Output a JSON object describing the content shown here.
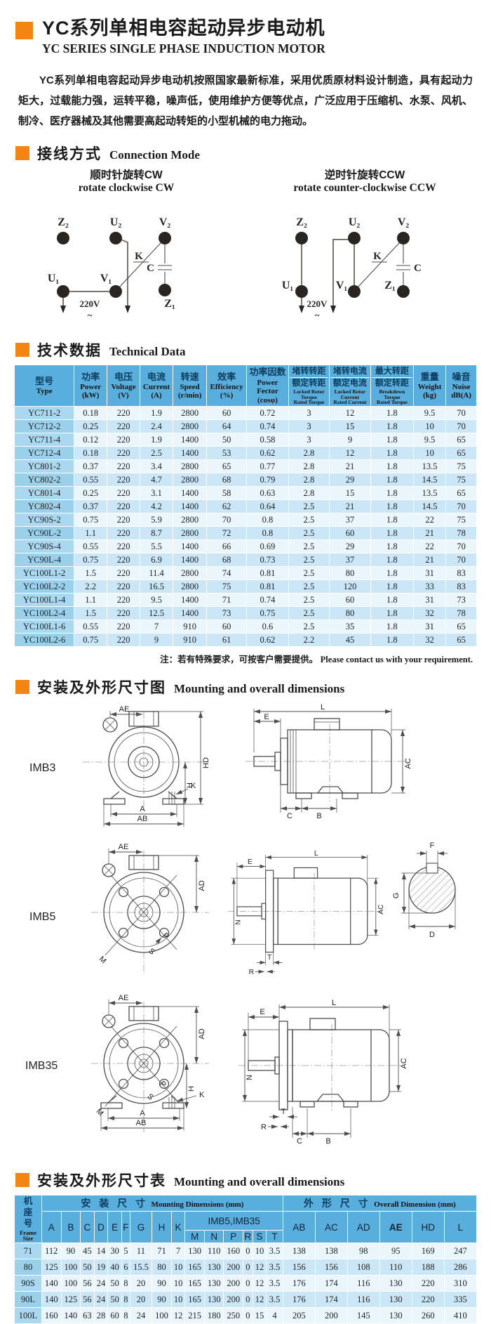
{
  "dims": {
    "A": "A",
    "AB": "AB",
    "AC": "AC",
    "AD": "AD",
    "AE": "AE",
    "B": "B",
    "C": "C",
    "D": "D",
    "E": "E",
    "F": "F",
    "G": "G",
    "H": "H",
    "HD": "HD",
    "K": "K",
    "L": "L",
    "M": "M",
    "N": "N",
    "P": "P",
    "R": "R",
    "S": "S",
    "T": "T"
  },
  "header": {
    "title_cn": "YC系列单相电容起动异步电动机",
    "title_en": "YC SERIES SINGLE PHASE INDUCTION MOTOR"
  },
  "intro": {
    "text": "YC系列单相电容起动异步电动机按照国家最新标准，采用优质原材料设计制造，具有起动力矩大，过载能力强，运转平稳，噪声低，使用维护方便等优点，广泛应用于压缩机、水泵、风机、制冷、医疗器械及其他需要高起动转矩的小型机械的电力拖动。"
  },
  "connection": {
    "heading_cn": "接线方式",
    "heading_en": "Connection Mode",
    "cw": {
      "title_cn": "顺时针旋转CW",
      "title_en": "rotate clockwise CW"
    },
    "ccw": {
      "title_cn": "逆时针旋转CCW",
      "title_en": "rotate counter-clockwise CCW"
    },
    "terminals": {
      "z2": "Z₂",
      "u2": "U₂",
      "v2": "V₂",
      "u1": "U₁",
      "v1": "V₁",
      "z1": "Z₁"
    },
    "labels": {
      "k": "K",
      "c": "C",
      "v": "220V",
      "tilde": "~"
    }
  },
  "technical": {
    "heading_cn": "技术数据",
    "heading_en": "Technical Data",
    "columns": [
      {
        "cn": "型号",
        "en": "Type",
        "unit": ""
      },
      {
        "cn": "功率",
        "en": "Power",
        "unit": "(kW)"
      },
      {
        "cn": "电压",
        "en": "Voltage",
        "unit": "(V)"
      },
      {
        "cn": "电流",
        "en": "Current",
        "unit": "(A)"
      },
      {
        "cn": "转速",
        "en": "Speed",
        "unit": "(r/min)"
      },
      {
        "cn": "效率",
        "en": "Efficiency",
        "unit": "(%)"
      },
      {
        "cn": "功率因数",
        "en": "Power Fector",
        "unit": "(cosφ)"
      },
      {
        "cn1": "堵转转距",
        "cn2": "额定转距",
        "en1": "Locked Rotor",
        "en2": "Torque",
        "en3": "Rated Torque"
      },
      {
        "cn1": "堵转电流",
        "cn2": "额定电流",
        "en1": "Locked Rotor",
        "en2": "Current",
        "en3": "Rated Current"
      },
      {
        "cn1": "最大转距",
        "cn2": "额定转距",
        "en1": "Breakdown",
        "en2": "Torque",
        "en3": "Rated Torque"
      },
      {
        "cn": "重量",
        "en": "Weight",
        "unit": "(kg)"
      },
      {
        "cn": "噪音",
        "en": "Noise",
        "unit": "dB(A)"
      }
    ],
    "rows": [
      [
        "YC711-2",
        "0.18",
        "220",
        "1.9",
        "2800",
        "60",
        "0.72",
        "3",
        "12",
        "1.8",
        "9.5",
        "70"
      ],
      [
        "YC712-2",
        "0.25",
        "220",
        "2.4",
        "2800",
        "64",
        "0.74",
        "3",
        "15",
        "1.8",
        "10",
        "70"
      ],
      [
        "YC711-4",
        "0.12",
        "220",
        "1.9",
        "1400",
        "50",
        "0.58",
        "3",
        "9",
        "1.8",
        "9.5",
        "65"
      ],
      [
        "YC712-4",
        "0.18",
        "220",
        "2.5",
        "1400",
        "53",
        "0.62",
        "2.8",
        "12",
        "1.8",
        "10",
        "65"
      ],
      [
        "YC801-2",
        "0.37",
        "220",
        "3.4",
        "2800",
        "65",
        "0.77",
        "2.8",
        "21",
        "1.8",
        "13.5",
        "75"
      ],
      [
        "YC802-2",
        "0.55",
        "220",
        "4.7",
        "2800",
        "68",
        "0.79",
        "2.8",
        "29",
        "1.8",
        "14.5",
        "75"
      ],
      [
        "YC801-4",
        "0.25",
        "220",
        "3.1",
        "1400",
        "58",
        "0.63",
        "2.8",
        "15",
        "1.8",
        "13.5",
        "65"
      ],
      [
        "YC802-4",
        "0.37",
        "220",
        "4.2",
        "1400",
        "62",
        "0.64",
        "2.5",
        "21",
        "1.8",
        "14.5",
        "70"
      ],
      [
        "YC90S-2",
        "0.75",
        "220",
        "5.9",
        "2800",
        "70",
        "0.8",
        "2.5",
        "37",
        "1.8",
        "22",
        "75"
      ],
      [
        "YC90L-2",
        "1.1",
        "220",
        "8.7",
        "2800",
        "72",
        "0.8",
        "2.5",
        "60",
        "1.8",
        "21",
        "78"
      ],
      [
        "YC90S-4",
        "0.55",
        "220",
        "5.5",
        "1400",
        "66",
        "0.69",
        "2.5",
        "29",
        "1.8",
        "22",
        "70"
      ],
      [
        "YC90L-4",
        "0.75",
        "220",
        "6.9",
        "1400",
        "68",
        "0.73",
        "2.5",
        "37",
        "1.8",
        "21",
        "70"
      ],
      [
        "YC100L1-2",
        "1.5",
        "220",
        "11.4",
        "2800",
        "74",
        "0.81",
        "2.5",
        "80",
        "1.8",
        "31",
        "83"
      ],
      [
        "YC100L2-2",
        "2.2",
        "220",
        "16.5",
        "2800",
        "75",
        "0.81",
        "2.5",
        "120",
        "1.8",
        "33",
        "83"
      ],
      [
        "YC100L1-4",
        "1.1",
        "220",
        "9.5",
        "1400",
        "71",
        "0.74",
        "2.5",
        "60",
        "1.8",
        "31",
        "73"
      ],
      [
        "YC100L2-4",
        "1.5",
        "220",
        "12.5",
        "1400",
        "73",
        "0.75",
        "2.5",
        "80",
        "1.8",
        "32",
        "78"
      ],
      [
        "YC100L1-6",
        "0.55",
        "220",
        "7",
        "910",
        "60",
        "0.6",
        "2.5",
        "35",
        "1.8",
        "31",
        "65"
      ],
      [
        "YC100L2-6",
        "0.75",
        "220",
        "9",
        "910",
        "61",
        "0.62",
        "2.2",
        "45",
        "1.8",
        "32",
        "65"
      ]
    ],
    "note_cn": "注：若有特殊要求，可按客户需要提供。",
    "note_en": "Please contact us with your requirement."
  },
  "mounting_fig": {
    "heading_cn": "安装及外形尺寸图",
    "heading_en": "Mounting and overall dimensions",
    "figures": [
      "IMB3",
      "IMB5",
      "IMB35"
    ]
  },
  "mounting_table": {
    "heading_cn": "安装及外形尺寸表",
    "heading_en": "Mounting and overall dimensions",
    "frame_cn": "机座号",
    "frame_en": "Frame Size",
    "mount_cn": "安 装 尺 寸",
    "mount_en": "Mounting Dimensions (mm)",
    "overall_cn": "外 形 尺 寸",
    "overall_en": "Overall Dimension (mm)",
    "sub": "IMB5,IMB35",
    "cols_a": [
      "A",
      "B",
      "C",
      "D",
      "E",
      "F",
      "G",
      "H",
      "K"
    ],
    "cols_b": [
      "M",
      "N",
      "P",
      "R",
      "S",
      "T"
    ],
    "cols_c": [
      "AB",
      "AC",
      "AD",
      "AE",
      "HD",
      "L"
    ],
    "rows": [
      [
        "71",
        "112",
        "90",
        "45",
        "14",
        "30",
        "5",
        "11",
        "71",
        "7",
        "130",
        "110",
        "160",
        "0",
        "10",
        "3.5",
        "138",
        "138",
        "98",
        "95",
        "169",
        "247"
      ],
      [
        "80",
        "125",
        "100",
        "50",
        "19",
        "40",
        "6",
        "15.5",
        "80",
        "10",
        "165",
        "130",
        "200",
        "0",
        "12",
        "3.5",
        "156",
        "156",
        "108",
        "110",
        "188",
        "286"
      ],
      [
        "90S",
        "140",
        "100",
        "56",
        "24",
        "50",
        "8",
        "20",
        "90",
        "10",
        "165",
        "130",
        "200",
        "0",
        "12",
        "3.5",
        "176",
        "174",
        "116",
        "130",
        "220",
        "310"
      ],
      [
        "90L",
        "140",
        "125",
        "56",
        "24",
        "50",
        "8",
        "20",
        "90",
        "10",
        "165",
        "130",
        "200",
        "0",
        "12",
        "3.5",
        "176",
        "174",
        "116",
        "130",
        "220",
        "335"
      ],
      [
        "100L",
        "160",
        "140",
        "63",
        "28",
        "60",
        "8",
        "24",
        "100",
        "12",
        "215",
        "180",
        "250",
        "0",
        "15",
        "4",
        "205",
        "200",
        "145",
        "130",
        "260",
        "410"
      ]
    ]
  }
}
